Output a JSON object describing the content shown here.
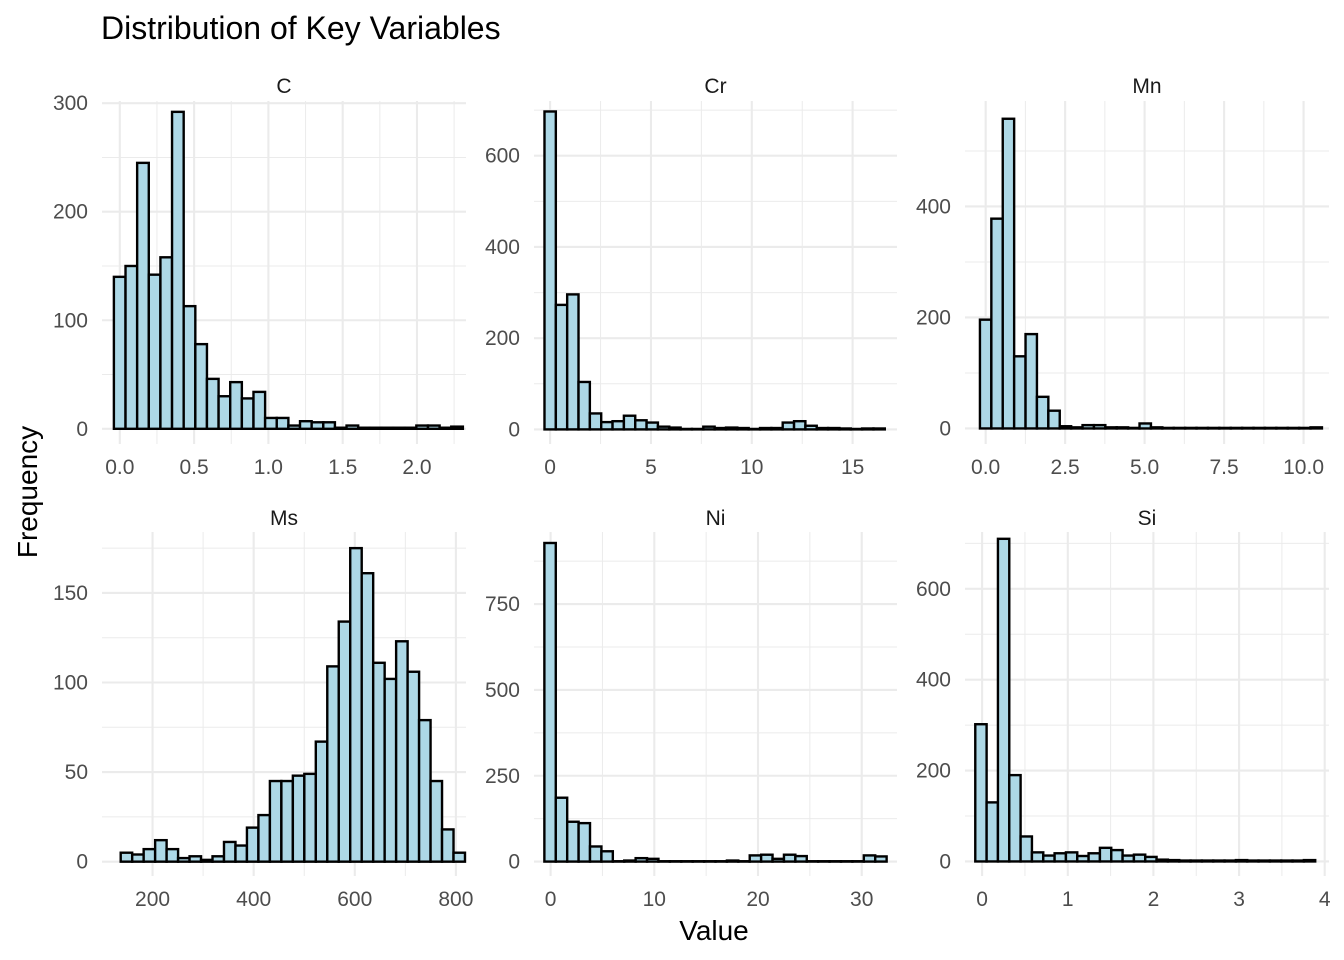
{
  "chart_data": {
    "type": "bar",
    "title": "Distribution of Key Variables",
    "xlabel": "Value",
    "ylabel": "Frequency",
    "colors": {
      "fill": "#add8e6",
      "stroke": "#000000",
      "grid": "#ebebeb"
    },
    "grid": true,
    "legend": "none",
    "panels": [
      {
        "name": "C",
        "bin_start": -0.04,
        "bin_width": 0.0783,
        "values": [
          140,
          150,
          245,
          142,
          158,
          292,
          113,
          78,
          46,
          30,
          43,
          28,
          34,
          10,
          10,
          3,
          7,
          6,
          6,
          1,
          3,
          1,
          1,
          1,
          1,
          1,
          3,
          3,
          1,
          2
        ],
        "xlim": [
          -0.12,
          2.33
        ],
        "ylim": [
          -14,
          302
        ],
        "xticks": [
          0,
          0.5,
          1,
          1.5,
          2
        ],
        "xtick_labels": [
          "0.0",
          "0.5",
          "1.0",
          "1.5",
          "2.0"
        ],
        "yticks": [
          0,
          100,
          200,
          300
        ],
        "ytick_labels": [
          "0",
          "100",
          "200",
          "300"
        ],
        "xminor": [
          0.25,
          0.75,
          1.25,
          1.75,
          2.25
        ],
        "yminor": [
          50,
          150,
          250
        ]
      },
      {
        "name": "Cr",
        "bin_start": -0.28,
        "bin_width": 0.5625,
        "values": [
          697,
          273,
          296,
          104,
          35,
          16,
          18,
          30,
          20,
          15,
          6,
          4,
          1,
          1,
          6,
          3,
          4,
          3,
          1,
          3,
          3,
          15,
          18,
          8,
          3,
          3,
          2,
          1,
          2,
          2
        ],
        "xlim": [
          -0.8,
          17.2
        ],
        "ylim": [
          -32,
          720
        ],
        "xticks": [
          0,
          5,
          10,
          15
        ],
        "xtick_labels": [
          "0",
          "5",
          "10",
          "15"
        ],
        "yticks": [
          0,
          200,
          400,
          600
        ],
        "ytick_labels": [
          "0",
          "200",
          "400",
          "600"
        ],
        "xminor": [
          2.5,
          7.5,
          12.5
        ],
        "yminor": [
          100,
          300,
          500,
          700
        ]
      },
      {
        "name": "Mn",
        "bin_start": -0.18,
        "bin_width": 0.3586,
        "values": [
          196,
          378,
          558,
          130,
          170,
          57,
          32,
          4,
          2,
          6,
          6,
          2,
          2,
          1,
          9,
          2,
          1,
          1,
          1,
          1,
          1,
          1,
          1,
          1,
          1,
          1,
          1,
          1,
          1,
          2
        ],
        "xlim": [
          -0.65,
          10.8
        ],
        "ylim": [
          -28,
          590
        ],
        "xticks": [
          0,
          2.5,
          5,
          7.5,
          10
        ],
        "xtick_labels": [
          "0.0",
          "2.5",
          "5.0",
          "7.5",
          "10.0"
        ],
        "yticks": [
          0,
          200,
          400
        ],
        "ytick_labels": [
          "0",
          "200",
          "400"
        ],
        "xminor": [
          1.25,
          3.75,
          6.25,
          8.75
        ],
        "yminor": [
          100,
          300,
          500
        ]
      },
      {
        "name": "Ms",
        "bin_start": 137,
        "bin_width": 22.7,
        "values": [
          5,
          4,
          7,
          12,
          7,
          2,
          3,
          1,
          3,
          11,
          9,
          19,
          26,
          45,
          45,
          48,
          49,
          67,
          109,
          134,
          175,
          161,
          111,
          102,
          123,
          106,
          79,
          45,
          18,
          5
        ],
        "xlim": [
          100,
          820
        ],
        "ylim": [
          -8,
          184
        ],
        "xticks": [
          200,
          400,
          600,
          800
        ],
        "xtick_labels": [
          "200",
          "400",
          "600",
          "800"
        ],
        "yticks": [
          0,
          50,
          100,
          150
        ],
        "ytick_labels": [
          "0",
          "50",
          "100",
          "150"
        ],
        "xminor": [
          300,
          500,
          700
        ],
        "yminor": [
          25,
          75,
          125,
          175
        ]
      },
      {
        "name": "Ni",
        "bin_start": -0.6,
        "bin_width": 1.1,
        "values": [
          928,
          186,
          116,
          112,
          44,
          30,
          1,
          3,
          10,
          8,
          1,
          1,
          1,
          1,
          1,
          1,
          3,
          1,
          18,
          20,
          8,
          20,
          16,
          1,
          1,
          1,
          1,
          1,
          18,
          15
        ],
        "xlim": [
          -1.6,
          33.4
        ],
        "ylim": [
          -42,
          960
        ],
        "xticks": [
          0,
          10,
          20,
          30
        ],
        "xtick_labels": [
          "0",
          "10",
          "20",
          "30"
        ],
        "yticks": [
          0,
          250,
          500,
          750
        ],
        "ytick_labels": [
          "0",
          "250",
          "500",
          "750"
        ],
        "xminor": [
          5,
          15,
          25
        ],
        "yminor": [
          125,
          375,
          625,
          875
        ]
      },
      {
        "name": "Si",
        "bin_start": -0.08,
        "bin_width": 0.1323,
        "values": [
          302,
          130,
          710,
          190,
          55,
          20,
          13,
          18,
          20,
          12,
          18,
          30,
          25,
          13,
          15,
          10,
          4,
          3,
          2,
          2,
          2,
          2,
          2,
          3,
          2,
          2,
          2,
          2,
          2,
          3
        ],
        "xlim": [
          -0.2,
          4.05
        ],
        "ylim": [
          -32,
          725
        ],
        "xticks": [
          0,
          1,
          2,
          3,
          4
        ],
        "xtick_labels": [
          "0",
          "1",
          "2",
          "3",
          "4"
        ],
        "yticks": [
          0,
          200,
          400,
          600
        ],
        "ytick_labels": [
          "0",
          "200",
          "400",
          "600"
        ],
        "xminor": [
          0.5,
          1.5,
          2.5,
          3.5
        ],
        "yminor": [
          100,
          300,
          500,
          700
        ]
      }
    ]
  }
}
